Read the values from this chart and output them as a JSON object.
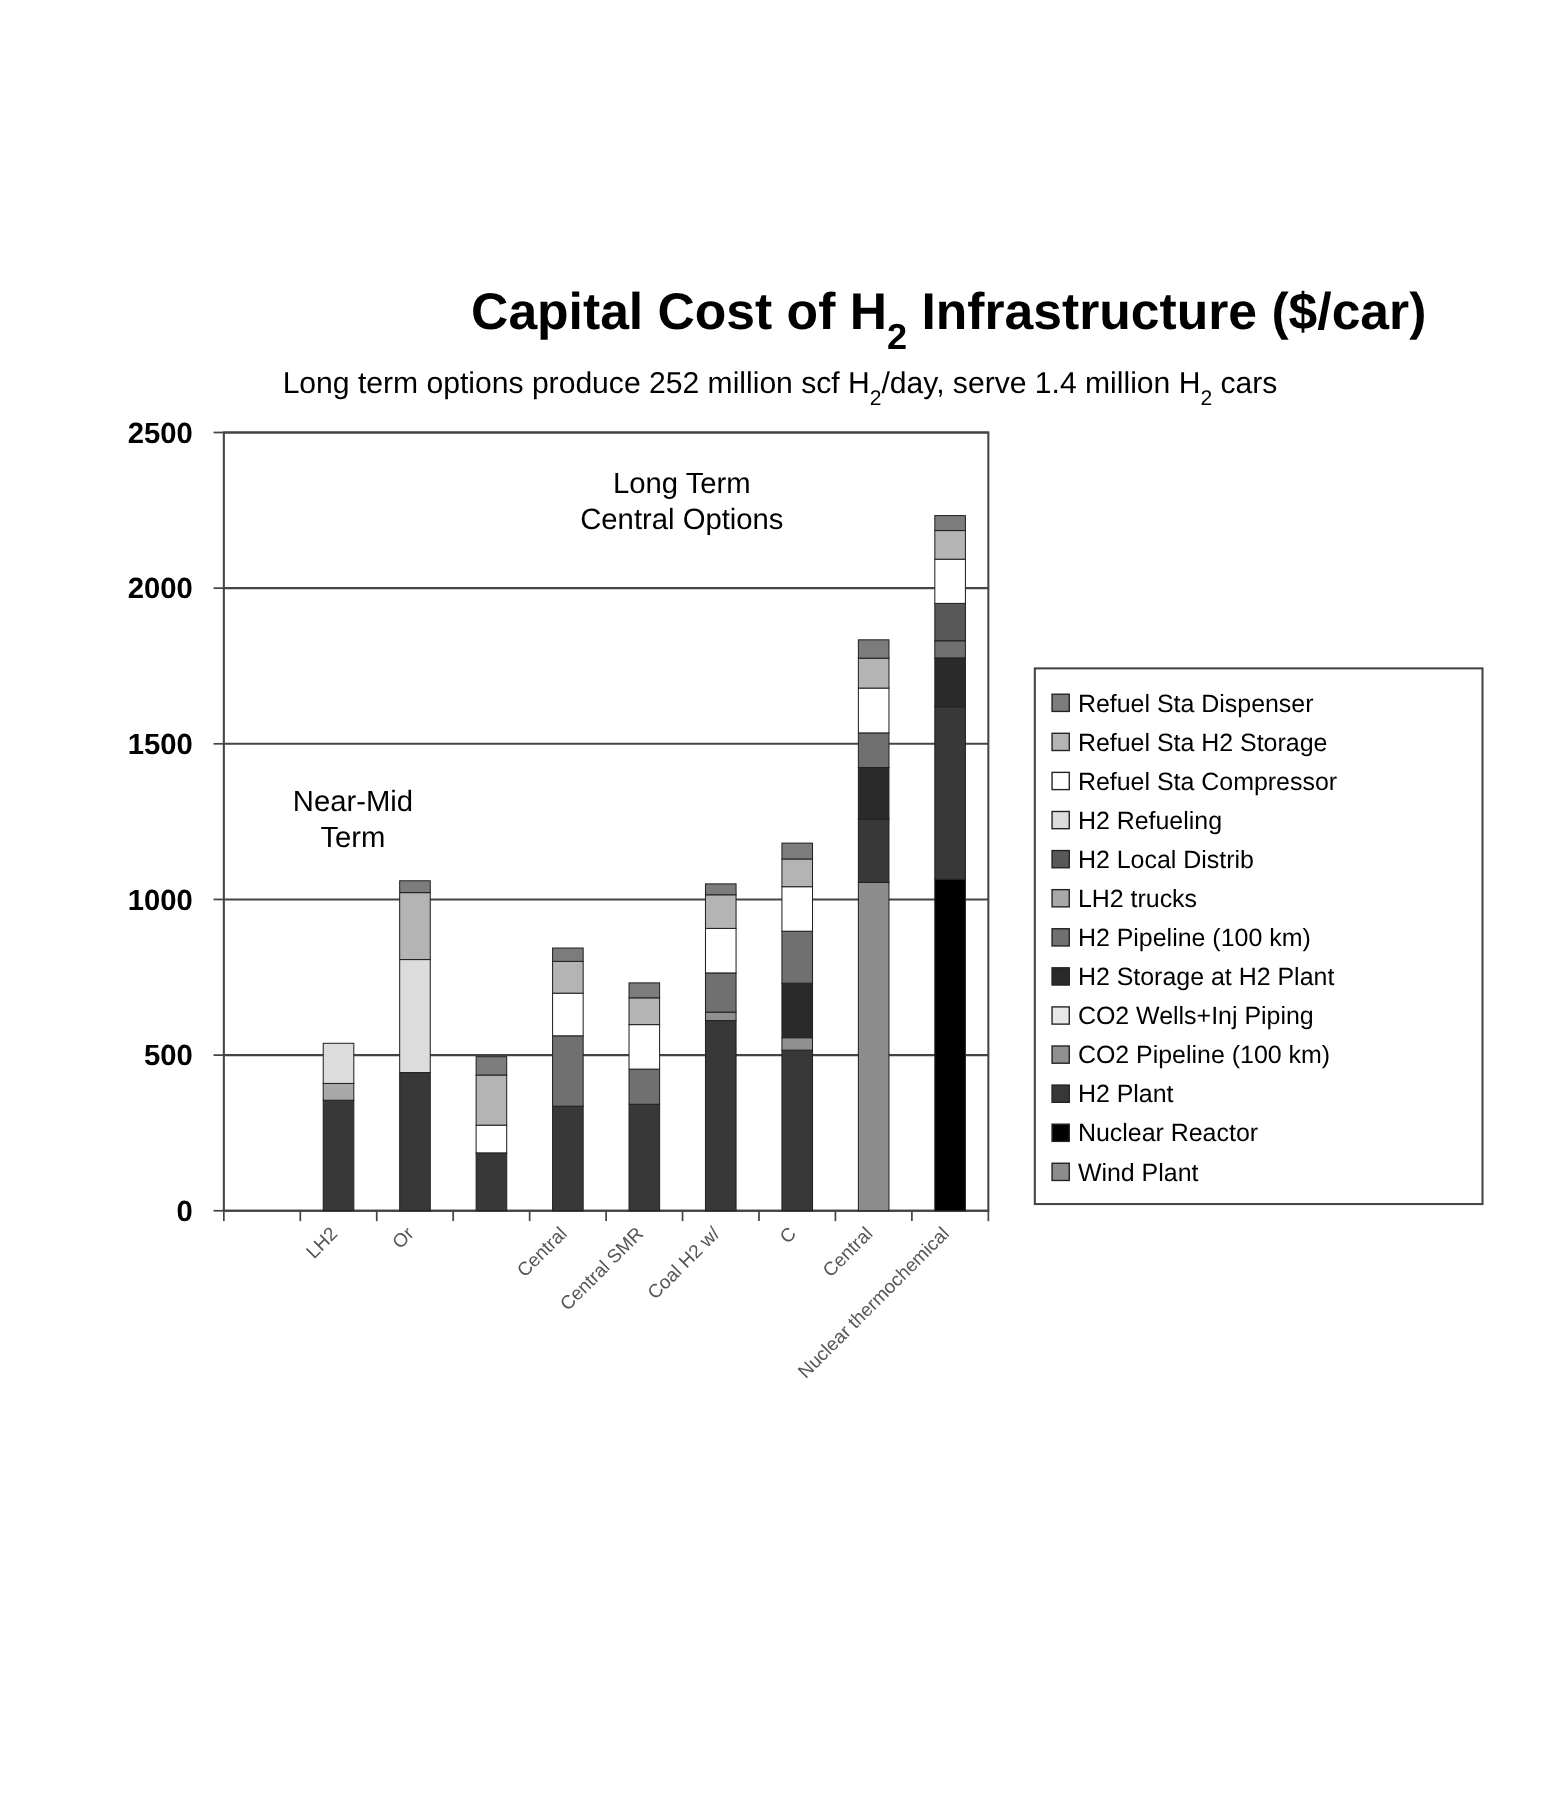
{
  "chart_data": {
    "type": "bar",
    "stacked": true,
    "title": "Capital Cost of H$_{2}$ Infrastructure ($/car)",
    "subtitle": "Long term options produce 252 million scf H$_{2}$/day, serve 1.4 million H$_{2}$ cars",
    "categories": [
      null,
      "LH2",
      "Or",
      null,
      "Central",
      "Central SMR",
      "Coal H2 w/",
      "C",
      "Central",
      "Nuclear thermochemical"
    ],
    "series": [
      {
        "name": "Wind Plant",
        "color": "#8c8c8c",
        "values": [
          null,
          null,
          null,
          null,
          null,
          null,
          null,
          null,
          1055,
          null
        ]
      },
      {
        "name": "Nuclear Reactor",
        "color": "#000000",
        "values": [
          null,
          null,
          null,
          null,
          null,
          null,
          null,
          null,
          null,
          1065
        ]
      },
      {
        "name": "H2 Plant",
        "color": "#383838",
        "values": [
          null,
          355,
          444,
          186,
          336,
          342,
          611,
          516,
          203,
          554
        ]
      },
      {
        "name": "CO2 Pipeline (100 km)",
        "color": "#909090",
        "values": [
          null,
          null,
          null,
          null,
          null,
          null,
          27,
          40,
          null,
          null
        ]
      },
      {
        "name": "CO2 Wells+Inj Piping",
        "color": "#e8e8e8",
        "values": [
          null,
          null,
          null,
          null,
          null,
          null,
          null,
          null,
          null,
          null
        ]
      },
      {
        "name": "H2 Storage at H2 Plant",
        "color": "#2a2a2a",
        "values": [
          null,
          null,
          null,
          null,
          null,
          null,
          null,
          175,
          166,
          157
        ]
      },
      {
        "name": "H2 Pipeline (100 km)",
        "color": "#707070",
        "values": [
          null,
          null,
          null,
          null,
          226,
          113,
          126,
          167,
          111,
          55
        ]
      },
      {
        "name": "LH2 trucks",
        "color": "#a8a8a8",
        "values": [
          null,
          54,
          null,
          null,
          null,
          null,
          null,
          null,
          null,
          null
        ]
      },
      {
        "name": "H2 Local Distrib",
        "color": "#585858",
        "values": [
          null,
          null,
          null,
          null,
          null,
          null,
          null,
          null,
          null,
          120
        ]
      },
      {
        "name": "H2 Refueling",
        "color": "#dcdcdc",
        "values": [
          null,
          129,
          363,
          null,
          null,
          null,
          null,
          null,
          null,
          null
        ]
      },
      {
        "name": "Refuel Sta Compressor",
        "color": "#ffffff",
        "values": [
          null,
          null,
          null,
          89,
          137,
          143,
          143,
          143,
          144,
          142
        ]
      },
      {
        "name": "Refuel Sta H2 Storage",
        "color": "#b4b4b4",
        "values": [
          null,
          null,
          215,
          161,
          102,
          86,
          108,
          89,
          96,
          92
        ]
      },
      {
        "name": "Refuel Sta Dispenser",
        "color": "#7c7c7c",
        "values": [
          null,
          null,
          38,
          59,
          43,
          48,
          35,
          51,
          59,
          48
        ]
      }
    ],
    "ylim": [
      0,
      2500
    ],
    "yticks": [
      0,
      500,
      1000,
      1500,
      2000,
      2500
    ],
    "grid": "y",
    "legend": "right",
    "annotations": [
      "Long Term Central Options",
      "Near-Mid Term"
    ]
  }
}
